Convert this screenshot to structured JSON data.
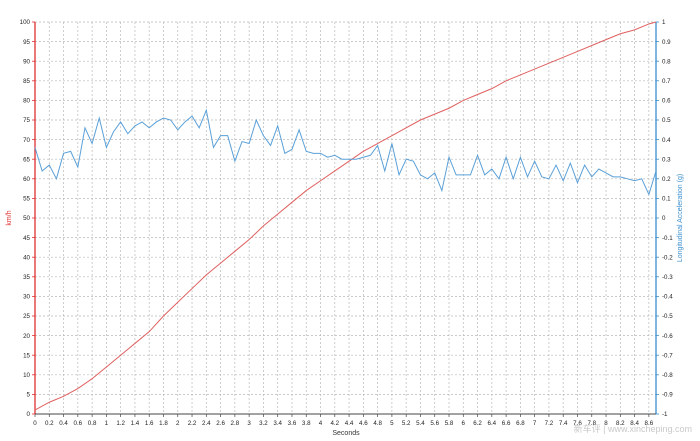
{
  "chart_data": {
    "type": "line",
    "xlabel": "Seconds",
    "y_left_label": "km/h",
    "y_right_label": "Longitudinal Acceleration (g)",
    "xlim": [
      0,
      8.7
    ],
    "x_ticks": [
      "0",
      "0.2",
      "0.4",
      "0.6",
      "0.8",
      "1",
      "1.2",
      "1.4",
      "1.6",
      "1.8",
      "2",
      "2.2",
      "2.4",
      "2.6",
      "2.8",
      "3",
      "3.2",
      "3.4",
      "3.6",
      "3.8",
      "4",
      "4.2",
      "4.4",
      "4.6",
      "4.8",
      "5",
      "5.2",
      "5.4",
      "5.6",
      "5.8",
      "6",
      "6.2",
      "6.4",
      "6.6",
      "6.8",
      "7",
      "7.2",
      "7.4",
      "7.6",
      "7.8",
      "8",
      "8.2",
      "8.4",
      "8.6"
    ],
    "y_left": {
      "min": 0,
      "max": 100,
      "step": 5,
      "color": "#e03030"
    },
    "y_right": {
      "min": -1,
      "max": 1,
      "step": 0.1,
      "color": "#3a8fd0"
    },
    "grid": true,
    "series": [
      {
        "axis": "left",
        "color": "#e06060",
        "x": [
          0,
          0.2,
          0.4,
          0.6,
          0.8,
          1.0,
          1.2,
          1.4,
          1.6,
          1.8,
          2.0,
          2.2,
          2.4,
          2.6,
          2.8,
          3.0,
          3.2,
          3.4,
          3.6,
          3.8,
          4.0,
          4.2,
          4.4,
          4.6,
          4.8,
          5.0,
          5.2,
          5.4,
          5.6,
          5.8,
          6.0,
          6.2,
          6.4,
          6.6,
          6.8,
          7.0,
          7.2,
          7.4,
          7.6,
          7.8,
          8.0,
          8.2,
          8.4,
          8.6,
          8.7
        ],
        "values": [
          1,
          3,
          4.5,
          6.5,
          9,
          12,
          15,
          18,
          21,
          25,
          28.5,
          32,
          35.5,
          38.5,
          41.5,
          44.5,
          48,
          51,
          54,
          57,
          59.5,
          62,
          64.5,
          67,
          69,
          71,
          73,
          75,
          76.5,
          78,
          80,
          81.5,
          83,
          85,
          86.5,
          88,
          89.5,
          91,
          92.5,
          94,
          95.5,
          97,
          98,
          99.5,
          100
        ]
      },
      {
        "axis": "right",
        "color": "#5aa0d8",
        "x": [
          0,
          0.1,
          0.2,
          0.3,
          0.4,
          0.5,
          0.6,
          0.7,
          0.8,
          0.9,
          1.0,
          1.1,
          1.2,
          1.3,
          1.4,
          1.5,
          1.6,
          1.7,
          1.8,
          1.9,
          2.0,
          2.1,
          2.2,
          2.3,
          2.4,
          2.5,
          2.6,
          2.7,
          2.8,
          2.9,
          3.0,
          3.1,
          3.2,
          3.3,
          3.4,
          3.5,
          3.6,
          3.7,
          3.8,
          3.9,
          4.0,
          4.1,
          4.2,
          4.3,
          4.4,
          4.5,
          4.6,
          4.7,
          4.8,
          4.9,
          5.0,
          5.1,
          5.2,
          5.3,
          5.4,
          5.5,
          5.6,
          5.7,
          5.8,
          5.9,
          6.0,
          6.1,
          6.2,
          6.3,
          6.4,
          6.5,
          6.6,
          6.7,
          6.8,
          6.9,
          7.0,
          7.1,
          7.2,
          7.3,
          7.4,
          7.5,
          7.6,
          7.7,
          7.8,
          7.9,
          8.0,
          8.1,
          8.2,
          8.3,
          8.4,
          8.5,
          8.6,
          8.7
        ],
        "values": [
          0.36,
          0.24,
          0.27,
          0.2,
          0.33,
          0.34,
          0.26,
          0.46,
          0.38,
          0.51,
          0.36,
          0.44,
          0.49,
          0.43,
          0.47,
          0.49,
          0.46,
          0.49,
          0.51,
          0.5,
          0.45,
          0.49,
          0.52,
          0.46,
          0.55,
          0.36,
          0.42,
          0.42,
          0.29,
          0.39,
          0.38,
          0.5,
          0.42,
          0.37,
          0.47,
          0.33,
          0.35,
          0.45,
          0.34,
          0.33,
          0.33,
          0.31,
          0.32,
          0.3,
          0.3,
          0.3,
          0.31,
          0.32,
          0.37,
          0.24,
          0.38,
          0.22,
          0.3,
          0.29,
          0.22,
          0.2,
          0.23,
          0.14,
          0.31,
          0.22,
          0.22,
          0.22,
          0.32,
          0.22,
          0.25,
          0.2,
          0.31,
          0.2,
          0.31,
          0.21,
          0.29,
          0.21,
          0.2,
          0.27,
          0.19,
          0.28,
          0.18,
          0.27,
          0.21,
          0.25,
          0.23,
          0.21,
          0.21,
          0.2,
          0.19,
          0.2,
          0.12,
          0.24
        ]
      }
    ]
  },
  "watermark": "新车评 | www.xincheping.com"
}
